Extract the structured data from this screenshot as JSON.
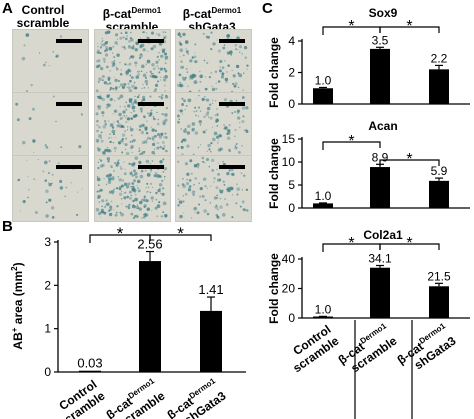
{
  "panel_a": {
    "letter": "A",
    "columns": [
      {
        "line1": "Control",
        "line2": "scramble",
        "stain": "low"
      },
      {
        "line1_main": "β-cat",
        "line1_sup": "Dermo1",
        "line2": "scramble",
        "stain": "high"
      },
      {
        "line1_main": "β-cat",
        "line1_sup": "Dermo1",
        "line2": "shGata3",
        "stain": "mid"
      }
    ]
  },
  "panel_b": {
    "letter": "B",
    "ylabel_main": "AB",
    "ylabel_sup": "+",
    "ylabel_rest": " area (mm",
    "ylabel_sup2": "2",
    "ylabel_end": ")",
    "significance": [
      "*",
      "*"
    ]
  },
  "panel_c": {
    "letter": "C",
    "x_labels": [
      {
        "line1": "Control",
        "line2": "scramble"
      },
      {
        "line1_main": "β-cat",
        "line1_sup": "Dermo1",
        "line2": "scramble"
      },
      {
        "line1_main": "β-cat",
        "line1_sup": "Dermo1",
        "line2": "shGata3"
      }
    ]
  },
  "chart_data": [
    {
      "id": "B",
      "type": "bar",
      "categories": [
        "Control scramble",
        "β-catDermo1 scramble",
        "β-catDermo1 shGata3"
      ],
      "values": [
        0.03,
        2.56,
        1.41
      ],
      "value_labels": [
        "0.03",
        "2.56",
        "1.41"
      ],
      "errors": [
        0.0,
        0.22,
        0.32
      ],
      "ylabel": "AB+ area (mm2)",
      "ylim": [
        0,
        3
      ],
      "yticks": [
        "0",
        "1",
        "2",
        "3"
      ],
      "significance": [
        "*",
        "*"
      ]
    },
    {
      "id": "C-Sox9",
      "type": "bar",
      "title": "Sox9",
      "ylabel": "Fold change",
      "categories": [
        "Control scramble",
        "β-catDermo1 scramble",
        "β-catDermo1 shGata3"
      ],
      "values": [
        1.0,
        3.5,
        2.2
      ],
      "value_labels": [
        "1.0",
        "3.5",
        "2.2"
      ],
      "errors": [
        0.05,
        0.1,
        0.25
      ],
      "ylim": [
        0,
        4
      ],
      "yticks": [
        "0",
        "2",
        "4"
      ],
      "significance": [
        "*",
        "*"
      ]
    },
    {
      "id": "C-Acan",
      "type": "bar",
      "title": "Acan",
      "ylabel": "Fold change",
      "categories": [
        "Control scramble",
        "β-catDermo1 scramble",
        "β-catDermo1 shGata3"
      ],
      "values": [
        1.0,
        8.9,
        5.9
      ],
      "value_labels": [
        "1.0",
        "8.9",
        "5.9"
      ],
      "errors": [
        0.1,
        0.6,
        0.6
      ],
      "ylim": [
        0,
        15
      ],
      "yticks": [
        "0",
        "5",
        "10",
        "15"
      ],
      "significance": [
        "*",
        "*"
      ]
    },
    {
      "id": "C-Col2a1",
      "type": "bar",
      "title": "Col2a1",
      "ylabel": "Fold change",
      "categories": [
        "Control scramble",
        "β-catDermo1 scramble",
        "β-catDermo1 shGata3"
      ],
      "values": [
        1.0,
        34.1,
        21.5
      ],
      "value_labels": [
        "1.0",
        "34.1",
        "21.5"
      ],
      "errors": [
        0.1,
        1.5,
        2.0
      ],
      "ylim": [
        0,
        40
      ],
      "yticks": [
        "0",
        "20",
        "40"
      ],
      "significance": [
        "*",
        "*"
      ]
    }
  ],
  "colors": {
    "bar": "#000000",
    "stain": "#3f7f86",
    "well_bg": "#d9d8cf"
  }
}
